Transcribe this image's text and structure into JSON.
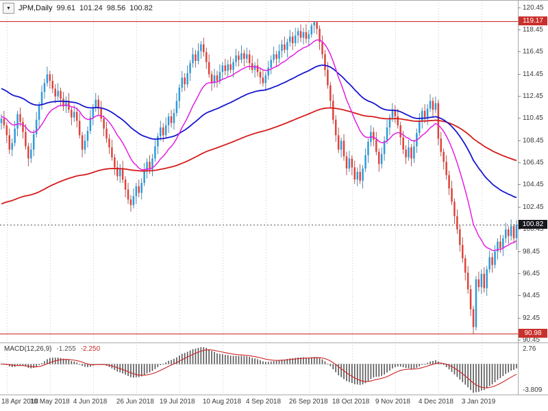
{
  "info_bar": {
    "symbol": "JPM,Daily",
    "open": "99.61",
    "high": "101.24",
    "low": "98.56",
    "close": "100.82"
  },
  "icons": {
    "dropdown_caret": "▼"
  },
  "price_axis": {
    "ticks": [
      "120.45",
      "118.45",
      "116.45",
      "114.45",
      "112.45",
      "110.45",
      "108.45",
      "106.45",
      "104.45",
      "102.45",
      "100.45",
      "98.45",
      "96.45",
      "94.45",
      "92.45",
      "90.45"
    ]
  },
  "time_axis": {
    "labels": [
      "18 Apr 2018",
      "10 May 2018",
      "4 Jun 2018",
      "26 Jun 2018",
      "19 Jul 2018",
      "10 Aug 2018",
      "4 Sep 2018",
      "26 Sep 2018",
      "18 Oct 2018",
      "9 Nov 2018",
      "4 Dec 2018",
      "3 Jan 2019"
    ],
    "gridline_bar_indices": [
      2,
      18,
      34,
      50,
      66,
      82,
      98,
      114,
      130,
      146,
      162,
      178
    ]
  },
  "macd_panel": {
    "label": "MACD(12,26,9)",
    "macd_value": "-1.255",
    "signal_value": "-2.250",
    "axis_max": "2.76",
    "axis_min": "-3.809"
  },
  "colors": {
    "background": "#ffffff",
    "grid": "#c9c9c9",
    "border": "#a8a8a8",
    "tick": "#888888",
    "bull": "#2f9ad8",
    "bear": "#df423a",
    "bull_wick": "#1e6f9f",
    "bear_wick": "#9c2d27",
    "current_line": "#555555",
    "level_red": "#cc2020",
    "tag_red": "#c9302c",
    "tag_black": "#17171d"
  },
  "chart_data": {
    "type": "candlestick",
    "title": "JPM, Daily",
    "ylim": [
      90.2,
      121.1
    ],
    "y_ticks": [
      120.45,
      118.45,
      116.45,
      114.45,
      112.45,
      110.45,
      108.45,
      106.45,
      104.45,
      102.45,
      100.45,
      98.45,
      96.45,
      94.45,
      92.45,
      90.45
    ],
    "x_axis_labels": [
      "18 Apr 2018",
      "10 May 2018",
      "4 Jun 2018",
      "26 Jun 2018",
      "19 Jul 2018",
      "10 Aug 2018",
      "4 Sep 2018",
      "26 Sep 2018",
      "18 Oct 2018",
      "9 Nov 2018",
      "4 Dec 2018",
      "3 Jan 2019"
    ],
    "last_bar_ohlc": {
      "open": 99.61,
      "high": 101.24,
      "low": 98.56,
      "close": 100.82
    },
    "horizontal_levels": [
      {
        "name": "resistance",
        "price": 119.17,
        "color": "#cc2020",
        "style": "solid",
        "tag": "119.17",
        "tag_bg": "#c9302c"
      },
      {
        "name": "current-price",
        "price": 100.82,
        "color": "#555555",
        "style": "dotted",
        "tag": "100.82",
        "tag_bg": "#17171d"
      },
      {
        "name": "support",
        "price": 90.98,
        "color": "#cc2020",
        "style": "solid",
        "tag": "90.98",
        "tag_bg": "#c9302c"
      }
    ],
    "moving_averages": [
      {
        "name": "ma-slow-red",
        "color": "#d51a1a",
        "period": 150,
        "seed": 102.6,
        "width": 1.8
      },
      {
        "name": "ma-medium-blue",
        "color": "#1616cf",
        "period": 60,
        "seed": 113.2,
        "width": 1.8
      },
      {
        "name": "ma-fast-magenta",
        "color": "#e21ee2",
        "period": 18,
        "seed": 110.6,
        "width": 1.5
      }
    ],
    "macd": {
      "fast": 12,
      "slow": 26,
      "signal_period": 9,
      "last_macd": -1.255,
      "last_signal": -2.25,
      "axis_max": 2.76,
      "axis_min": -3.809,
      "histogram_color": "#555555",
      "signal_color": "#cc2222"
    },
    "candles": [
      [
        110.0,
        110.8,
        109.4,
        110.4
      ],
      [
        110.4,
        111.1,
        109.5,
        109.8
      ],
      [
        109.8,
        110.1,
        108.2,
        108.9
      ],
      [
        108.9,
        109.5,
        107.2,
        107.6
      ],
      [
        107.6,
        108.6,
        107.0,
        108.2
      ],
      [
        108.2,
        110.2,
        107.9,
        109.5
      ],
      [
        109.5,
        111.1,
        108.8,
        110.8
      ],
      [
        110.8,
        111.4,
        109.7,
        110.1
      ],
      [
        110.1,
        110.5,
        108.6,
        109.2
      ],
      [
        109.2,
        109.9,
        107.6,
        107.9
      ],
      [
        107.9,
        108.2,
        106.1,
        106.8
      ],
      [
        106.8,
        108.2,
        106.4,
        107.6
      ],
      [
        107.6,
        109.4,
        107.0,
        109.0
      ],
      [
        109.0,
        111.0,
        108.7,
        110.3
      ],
      [
        110.3,
        111.9,
        109.6,
        111.6
      ],
      [
        111.6,
        113.4,
        111.2,
        112.8
      ],
      [
        112.8,
        114.0,
        112.2,
        113.6
      ],
      [
        113.6,
        115.1,
        113.3,
        114.4
      ],
      [
        114.4,
        114.7,
        113.1,
        113.8
      ],
      [
        113.8,
        114.4,
        112.7,
        113.1
      ],
      [
        113.1,
        113.5,
        111.8,
        112.4
      ],
      [
        112.4,
        113.6,
        112.1,
        112.9
      ],
      [
        112.9,
        113.2,
        111.5,
        112.2
      ],
      [
        112.2,
        112.8,
        111.1,
        111.5
      ],
      [
        111.5,
        112.4,
        110.9,
        112.0
      ],
      [
        112.0,
        112.7,
        110.9,
        111.2
      ],
      [
        111.2,
        111.5,
        109.8,
        110.5
      ],
      [
        110.5,
        111.6,
        110.1,
        111.0
      ],
      [
        111.0,
        111.4,
        109.6,
        110.2
      ],
      [
        110.2,
        110.9,
        108.6,
        108.9
      ],
      [
        108.9,
        109.2,
        106.9,
        107.6
      ],
      [
        107.6,
        109.0,
        107.2,
        108.4
      ],
      [
        108.4,
        109.7,
        107.8,
        109.3
      ],
      [
        109.3,
        111.2,
        109.0,
        110.5
      ],
      [
        110.5,
        111.7,
        109.8,
        111.4
      ],
      [
        111.4,
        112.7,
        111.0,
        112.1
      ],
      [
        112.1,
        112.5,
        110.7,
        111.3
      ],
      [
        111.3,
        112.0,
        110.1,
        110.4
      ],
      [
        110.4,
        110.7,
        108.8,
        109.5
      ],
      [
        109.5,
        110.1,
        108.2,
        108.6
      ],
      [
        108.6,
        109.0,
        107.2,
        107.8
      ],
      [
        107.8,
        108.5,
        106.6,
        106.9
      ],
      [
        106.9,
        107.2,
        105.3,
        106.0
      ],
      [
        106.0,
        106.6,
        104.8,
        105.2
      ],
      [
        105.2,
        106.3,
        104.6,
        105.9
      ],
      [
        105.9,
        106.6,
        104.6,
        104.9
      ],
      [
        104.9,
        105.2,
        103.3,
        104.0
      ],
      [
        104.0,
        104.6,
        102.7,
        103.1
      ],
      [
        103.1,
        103.5,
        102.0,
        102.6
      ],
      [
        102.6,
        104.1,
        102.3,
        103.4
      ],
      [
        103.4,
        104.6,
        102.7,
        104.3
      ],
      [
        104.3,
        104.9,
        103.3,
        103.7
      ],
      [
        103.7,
        105.0,
        103.1,
        104.6
      ],
      [
        104.6,
        106.4,
        104.3,
        105.7
      ],
      [
        105.7,
        106.8,
        105.0,
        106.5
      ],
      [
        106.5,
        107.1,
        105.4,
        105.8
      ],
      [
        105.8,
        107.2,
        105.2,
        106.8
      ],
      [
        106.8,
        108.6,
        106.5,
        107.9
      ],
      [
        107.9,
        109.1,
        107.2,
        108.8
      ],
      [
        108.8,
        110.2,
        108.4,
        109.6
      ],
      [
        109.6,
        110.0,
        108.3,
        108.9
      ],
      [
        108.9,
        110.5,
        108.6,
        109.8
      ],
      [
        109.8,
        110.9,
        109.1,
        110.6
      ],
      [
        110.6,
        111.2,
        109.6,
        110.0
      ],
      [
        110.0,
        111.3,
        109.4,
        110.9
      ],
      [
        110.9,
        112.7,
        110.6,
        112.0
      ],
      [
        112.0,
        113.5,
        111.3,
        113.2
      ],
      [
        113.2,
        114.7,
        112.8,
        114.1
      ],
      [
        114.1,
        114.5,
        112.9,
        113.5
      ],
      [
        113.5,
        115.2,
        113.2,
        114.5
      ],
      [
        114.5,
        115.7,
        113.8,
        115.4
      ],
      [
        115.4,
        116.8,
        115.0,
        116.2
      ],
      [
        116.2,
        116.6,
        115.0,
        115.6
      ],
      [
        115.6,
        117.2,
        115.3,
        116.5
      ],
      [
        116.5,
        117.4,
        115.8,
        117.1
      ],
      [
        117.1,
        117.7,
        116.0,
        116.4
      ],
      [
        116.4,
        116.8,
        114.9,
        115.5
      ],
      [
        115.5,
        116.2,
        114.1,
        114.4
      ],
      [
        114.4,
        114.7,
        112.9,
        113.6
      ],
      [
        113.6,
        114.9,
        113.2,
        114.3
      ],
      [
        114.3,
        114.7,
        113.2,
        113.8
      ],
      [
        113.8,
        115.3,
        113.5,
        114.6
      ],
      [
        114.6,
        115.5,
        113.9,
        115.2
      ],
      [
        115.2,
        115.8,
        114.3,
        114.7
      ],
      [
        114.7,
        115.7,
        114.1,
        115.3
      ],
      [
        115.3,
        116.0,
        114.5,
        114.8
      ],
      [
        114.8,
        115.8,
        114.1,
        115.5
      ],
      [
        115.5,
        116.7,
        115.1,
        116.1
      ],
      [
        116.1,
        116.5,
        115.1,
        115.7
      ],
      [
        115.7,
        117.0,
        115.4,
        116.3
      ],
      [
        116.3,
        116.6,
        115.1,
        115.8
      ],
      [
        115.8,
        116.8,
        115.4,
        116.2
      ],
      [
        116.2,
        116.6,
        114.8,
        115.4
      ],
      [
        115.4,
        116.1,
        114.5,
        114.8
      ],
      [
        114.8,
        115.5,
        114.1,
        115.2
      ],
      [
        115.2,
        115.8,
        114.2,
        114.6
      ],
      [
        114.6,
        115.0,
        113.5,
        114.1
      ],
      [
        114.1,
        114.8,
        113.3,
        113.6
      ],
      [
        113.6,
        114.6,
        112.9,
        114.3
      ],
      [
        114.3,
        115.6,
        113.9,
        115.0
      ],
      [
        115.0,
        116.1,
        114.4,
        115.7
      ],
      [
        115.7,
        116.9,
        115.4,
        116.2
      ],
      [
        116.2,
        116.5,
        115.1,
        115.8
      ],
      [
        115.8,
        117.1,
        115.4,
        116.5
      ],
      [
        116.5,
        117.5,
        115.9,
        117.1
      ],
      [
        117.1,
        117.8,
        116.3,
        116.6
      ],
      [
        116.6,
        117.6,
        115.9,
        117.3
      ],
      [
        117.3,
        118.4,
        116.9,
        117.8
      ],
      [
        117.8,
        118.2,
        116.6,
        117.2
      ],
      [
        117.2,
        118.6,
        116.9,
        117.9
      ],
      [
        117.9,
        118.6,
        117.2,
        118.3
      ],
      [
        118.3,
        118.9,
        117.3,
        117.7
      ],
      [
        117.7,
        118.6,
        117.1,
        118.2
      ],
      [
        118.2,
        118.9,
        117.2,
        117.6
      ],
      [
        117.6,
        118.4,
        117.0,
        118.0
      ],
      [
        118.0,
        119.0,
        117.7,
        118.8
      ],
      [
        118.8,
        119.17,
        118.1,
        119.1
      ],
      [
        119.1,
        119.12,
        118.0,
        118.5
      ],
      [
        118.5,
        118.8,
        116.6,
        117.3
      ],
      [
        117.3,
        117.9,
        115.8,
        116.2
      ],
      [
        116.2,
        116.6,
        114.2,
        114.8
      ],
      [
        114.8,
        115.5,
        113.1,
        113.4
      ],
      [
        113.4,
        113.7,
        111.3,
        112.0
      ],
      [
        112.0,
        112.6,
        109.9,
        110.3
      ],
      [
        110.3,
        110.7,
        108.3,
        108.9
      ],
      [
        108.9,
        109.6,
        107.3,
        107.6
      ],
      [
        107.6,
        108.7,
        106.9,
        108.4
      ],
      [
        108.4,
        109.0,
        106.6,
        107.0
      ],
      [
        107.0,
        107.4,
        105.3,
        105.9
      ],
      [
        105.9,
        107.5,
        105.6,
        106.8
      ],
      [
        106.8,
        107.1,
        105.3,
        106.0
      ],
      [
        106.0,
        106.6,
        104.5,
        104.9
      ],
      [
        104.9,
        106.0,
        104.3,
        105.6
      ],
      [
        105.6,
        106.3,
        104.5,
        104.8
      ],
      [
        104.8,
        106.2,
        104.1,
        105.9
      ],
      [
        105.9,
        107.7,
        105.6,
        107.1
      ],
      [
        107.1,
        108.6,
        106.4,
        108.3
      ],
      [
        108.3,
        109.8,
        107.9,
        109.2
      ],
      [
        109.2,
        109.6,
        107.9,
        108.5
      ],
      [
        108.5,
        109.2,
        107.1,
        107.4
      ],
      [
        107.4,
        107.7,
        105.6,
        106.3
      ],
      [
        106.3,
        107.8,
        105.9,
        107.2
      ],
      [
        107.2,
        108.8,
        106.6,
        108.4
      ],
      [
        108.4,
        110.3,
        108.1,
        109.6
      ],
      [
        109.6,
        110.8,
        108.9,
        110.5
      ],
      [
        110.5,
        111.8,
        110.1,
        111.2
      ],
      [
        111.2,
        111.6,
        110.0,
        110.6
      ],
      [
        110.6,
        111.3,
        109.5,
        109.8
      ],
      [
        109.8,
        110.1,
        108.0,
        108.7
      ],
      [
        108.7,
        109.3,
        107.2,
        107.6
      ],
      [
        107.6,
        108.0,
        106.3,
        106.9
      ],
      [
        106.9,
        108.5,
        106.6,
        107.8
      ],
      [
        107.8,
        108.1,
        106.1,
        106.8
      ],
      [
        106.8,
        108.5,
        106.4,
        107.9
      ],
      [
        107.9,
        109.5,
        107.3,
        109.1
      ],
      [
        109.1,
        110.9,
        108.8,
        110.2
      ],
      [
        110.2,
        111.4,
        109.5,
        111.1
      ],
      [
        111.1,
        111.7,
        110.0,
        110.4
      ],
      [
        110.4,
        111.7,
        109.8,
        111.3
      ],
      [
        111.3,
        112.6,
        111.0,
        112.0
      ],
      [
        112.0,
        112.3,
        110.5,
        111.2
      ],
      [
        111.2,
        112.4,
        110.9,
        111.8
      ],
      [
        111.8,
        112.1,
        108.0,
        108.6
      ],
      [
        108.6,
        109.2,
        107.0,
        107.4
      ],
      [
        107.4,
        107.7,
        105.8,
        106.5
      ],
      [
        106.5,
        107.1,
        104.9,
        105.3
      ],
      [
        105.3,
        105.7,
        103.5,
        104.1
      ],
      [
        104.1,
        104.8,
        102.6,
        102.9
      ],
      [
        102.9,
        103.2,
        100.9,
        101.6
      ],
      [
        101.6,
        102.2,
        100.0,
        100.4
      ],
      [
        100.4,
        100.8,
        98.4,
        99.0
      ],
      [
        99.0,
        99.7,
        97.4,
        97.8
      ],
      [
        97.8,
        98.1,
        95.8,
        96.5
      ],
      [
        96.5,
        97.1,
        94.6,
        95.0
      ],
      [
        95.0,
        95.4,
        92.6,
        93.2
      ],
      [
        93.2,
        93.5,
        90.98,
        91.6
      ],
      [
        91.6,
        96.2,
        91.3,
        95.9
      ],
      [
        95.9,
        96.6,
        94.8,
        95.2
      ],
      [
        95.2,
        96.8,
        94.6,
        96.4
      ],
      [
        96.4,
        97.0,
        94.7,
        95.1
      ],
      [
        95.1,
        97.1,
        94.4,
        96.8
      ],
      [
        96.8,
        98.5,
        96.5,
        97.9
      ],
      [
        97.9,
        98.3,
        96.5,
        97.2
      ],
      [
        97.2,
        99.0,
        96.9,
        98.4
      ],
      [
        98.4,
        99.6,
        97.7,
        99.3
      ],
      [
        99.3,
        99.9,
        98.3,
        98.7
      ],
      [
        98.7,
        99.9,
        98.0,
        99.6
      ],
      [
        99.6,
        101.0,
        99.2,
        100.4
      ],
      [
        100.4,
        100.7,
        99.1,
        99.8
      ],
      [
        99.8,
        101.3,
        99.4,
        100.7
      ],
      [
        100.7,
        100.9,
        99.2,
        99.6
      ],
      [
        99.61,
        101.24,
        98.56,
        100.82
      ]
    ]
  }
}
